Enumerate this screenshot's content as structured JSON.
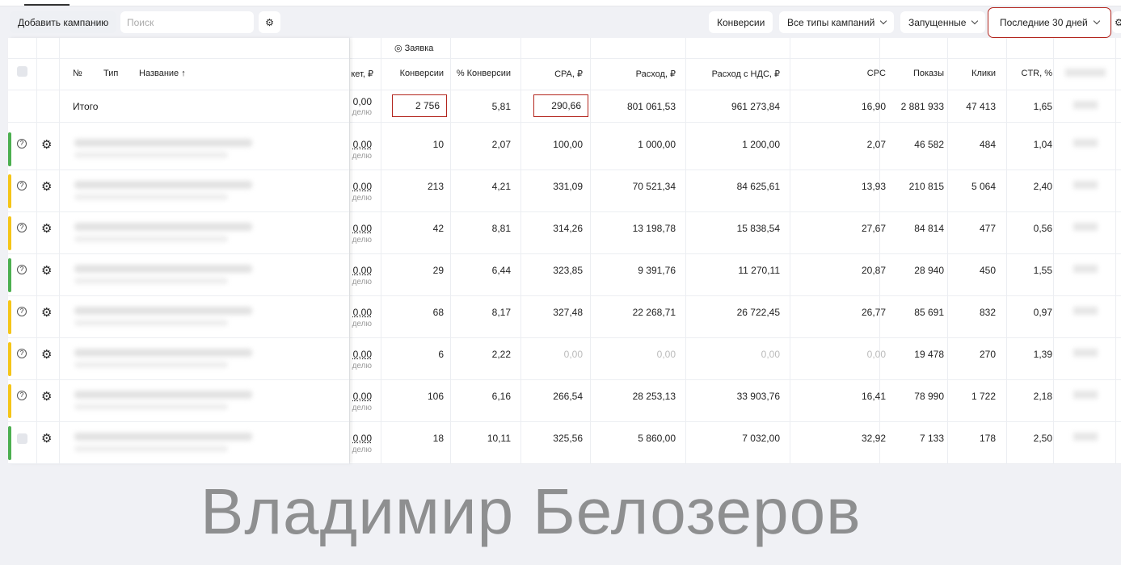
{
  "toolbar": {
    "add_campaign": "Добавить кампанию",
    "search_placeholder": "Поиск",
    "conversions": "Конверсии",
    "campaign_types": "Все типы кампаний",
    "status": "Запущенные",
    "period": "Последние 30 дней"
  },
  "table": {
    "group_header": "◎ Заявка",
    "headers": {
      "num": "№",
      "type": "Тип",
      "name": "Название ↑",
      "budget": "кет, ₽",
      "conversions": "Конверсии",
      "conv_pct": "% Конверсии",
      "cpa": "CPA, ₽",
      "spend": "Расход, ₽",
      "spend_vat": "Расход с НДС, ₽",
      "cpc": "CPC",
      "impressions": "Показы",
      "clicks": "Клики",
      "ctr": "CTR, %"
    },
    "total": {
      "label": "Итого",
      "budget": "0,00",
      "budget_sub": "делю",
      "conversions": "2 756",
      "conv_pct": "5,81",
      "cpa": "290,66",
      "spend": "801 061,53",
      "spend_vat": "961 273,84",
      "cpc": "16,90",
      "impressions": "2 881 933",
      "clicks": "47 413",
      "ctr": "1,65"
    },
    "rows": [
      {
        "status": "#4caf50",
        "icon": "help",
        "budget": "0,00",
        "budget_sub": "делю",
        "conversions": "10",
        "conv_pct": "2,07",
        "cpa": "100,00",
        "spend": "1 000,00",
        "spend_vat": "1 200,00",
        "cpc": "2,07",
        "impressions": "46 582",
        "clicks": "484",
        "ctr": "1,04"
      },
      {
        "status": "#f5c518",
        "icon": "help",
        "budget": "0,00",
        "budget_sub": "делю",
        "conversions": "213",
        "conv_pct": "4,21",
        "cpa": "331,09",
        "spend": "70 521,34",
        "spend_vat": "84 625,61",
        "cpc": "13,93",
        "impressions": "210 815",
        "clicks": "5 064",
        "ctr": "2,40"
      },
      {
        "status": "#f5c518",
        "icon": "help",
        "budget": "0,00",
        "budget_sub": "делю",
        "conversions": "42",
        "conv_pct": "8,81",
        "cpa": "314,26",
        "spend": "13 198,78",
        "spend_vat": "15 838,54",
        "cpc": "27,67",
        "impressions": "84 814",
        "clicks": "477",
        "ctr": "0,56"
      },
      {
        "status": "#4caf50",
        "icon": "help",
        "budget": "0,00",
        "budget_sub": "делю",
        "conversions": "29",
        "conv_pct": "6,44",
        "cpa": "323,85",
        "spend": "9 391,76",
        "spend_vat": "11 270,11",
        "cpc": "20,87",
        "impressions": "28 940",
        "clicks": "450",
        "ctr": "1,55"
      },
      {
        "status": "#f5c518",
        "icon": "help",
        "budget": "0,00",
        "budget_sub": "делю",
        "conversions": "68",
        "conv_pct": "8,17",
        "cpa": "327,48",
        "spend": "22 268,71",
        "spend_vat": "26 722,45",
        "cpc": "26,77",
        "impressions": "85 691",
        "clicks": "832",
        "ctr": "0,97"
      },
      {
        "status": "#f5c518",
        "icon": "help",
        "budget": "0,00",
        "budget_sub": "делю",
        "conversions": "6",
        "conv_pct": "2,22",
        "cpa": "0,00",
        "spend": "0,00",
        "spend_vat": "0,00",
        "cpc": "0,00",
        "impressions": "19 478",
        "clicks": "270",
        "ctr": "1,39",
        "muted": true
      },
      {
        "status": "#f5c518",
        "icon": "help",
        "budget": "0,00",
        "budget_sub": "делю",
        "conversions": "106",
        "conv_pct": "6,16",
        "cpa": "266,54",
        "spend": "28 253,13",
        "spend_vat": "33 903,76",
        "cpc": "16,41",
        "impressions": "78 990",
        "clicks": "1 722",
        "ctr": "2,18"
      },
      {
        "status": "#4caf50",
        "icon": "checkbox",
        "budget": "0,00",
        "budget_sub": "делю",
        "conversions": "18",
        "conv_pct": "10,11",
        "cpa": "325,56",
        "spend": "5 860,00",
        "spend_vat": "7 032,00",
        "cpc": "32,92",
        "impressions": "7 133",
        "clicks": "178",
        "ctr": "2,50"
      }
    ]
  },
  "watermark": "Владимир Белозеров"
}
